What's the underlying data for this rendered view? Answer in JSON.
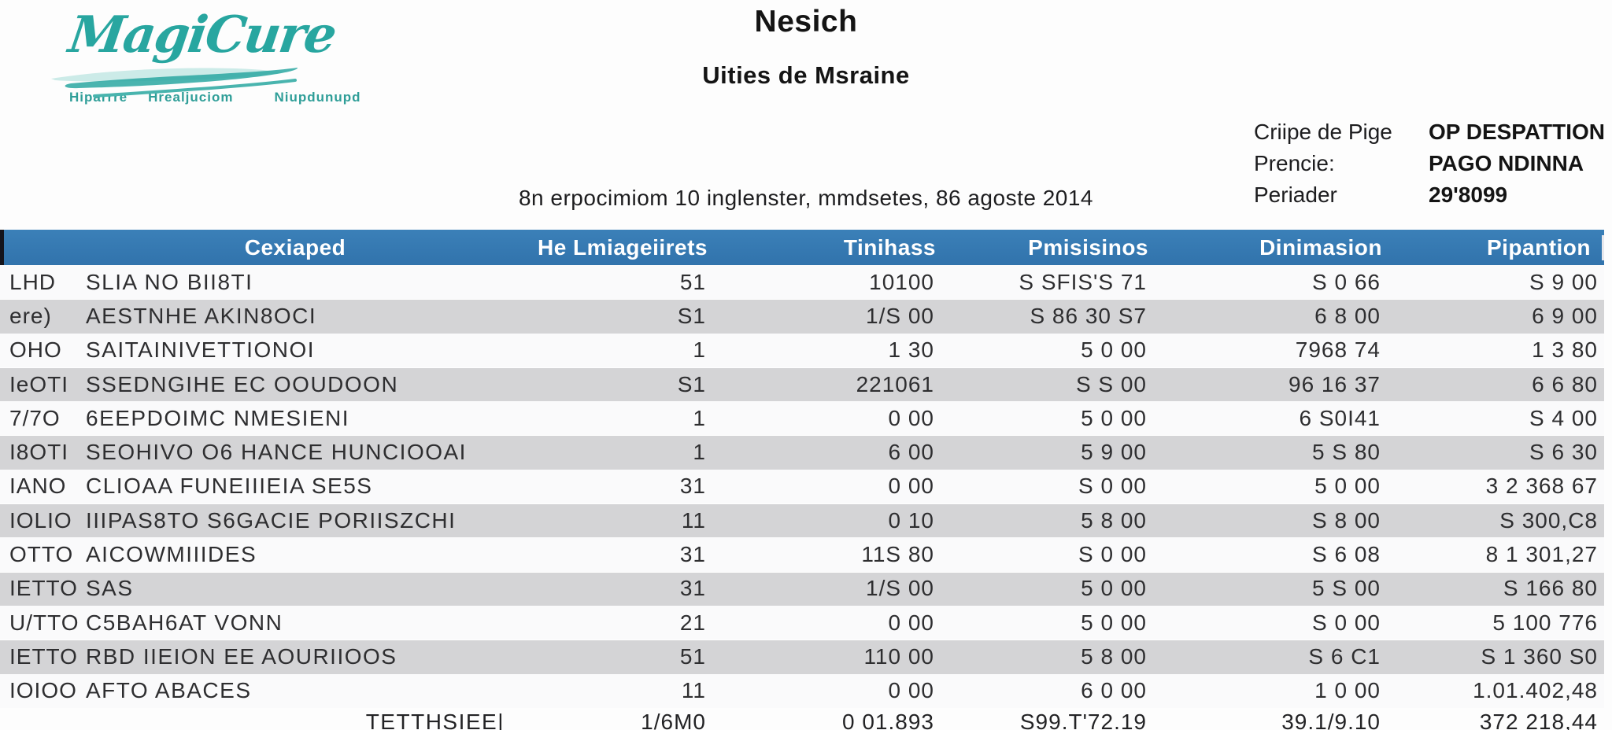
{
  "logo": {
    "brand": "MagiCure",
    "tagline": [
      "Hiparrre",
      "Hrealjuciom",
      "Niupdunupd"
    ]
  },
  "header": {
    "title": "Nesich",
    "subtitle": "Uities de Msraine",
    "info_line": "8n erpocimiom 10 inglenster, mmdsetes, 86 agoste 2014",
    "meta": {
      "labels": [
        "Criipe de Pige",
        "Prencie:",
        "Periader"
      ],
      "values": [
        "OP DESPATTION",
        "PAGO NDINNA",
        "29'8099"
      ]
    }
  },
  "table": {
    "columns": [
      "Cexiaped",
      "He Lmiageiirets",
      "Tinihass",
      "Pmisisinos",
      "Dinimasion",
      "Pipantion"
    ],
    "rows": [
      [
        "LHD",
        "SLIA NO BII8TI",
        "51",
        "10100",
        "S SFIS'S 71",
        "S 0 66",
        "S 9 00"
      ],
      [
        "ere)",
        "AESTNHE AKIN8OCI",
        "S1",
        "1/S 00",
        "S 86 30 S7",
        "6 8 00",
        "6 9 00"
      ],
      [
        "OHO",
        "SAITAINIVETTIONOI",
        "1",
        "1 30",
        "5 0 00",
        "7968 74",
        "1 3 80"
      ],
      [
        "IeOTI",
        "SSEDNGIHE EC OOUDOON",
        "S1",
        "221061",
        "S S 00",
        "96 16 37",
        "6 6 80"
      ],
      [
        "7/7O",
        "6EEPDOIMC NMESIENI",
        "1",
        "0 00",
        "5 0 00",
        "6 S0I41",
        "S 4 00"
      ],
      [
        "I8OTI",
        "SEOHIVO O6 HANCE HUNCIOOAI",
        "1",
        "6 00",
        "5 9 00",
        "5 S 80",
        "S 6 30"
      ],
      [
        "IANO",
        "CLIOAA FUNEIIIEIA SE5S",
        "31",
        "0 00",
        "S 0 00",
        "5 0 00",
        "3 2 368 67"
      ],
      [
        "IOLIO",
        "IIIPAS8TO S6GACIE PORIISZCHI",
        "11",
        "0 10",
        "5 8 00",
        "S 8 00",
        "S 300,C8"
      ],
      [
        "OTTO",
        "AICOWMIIIDES",
        "31",
        "11S 80",
        "S 0 00",
        "S 6 08",
        "8 1 301,27"
      ],
      [
        "IETTO",
        "SAS",
        "31",
        "1/S 00",
        "5 0 00",
        "5 S 00",
        "S 166 80"
      ],
      [
        "U/TTO",
        "C5BAH6AT VONN",
        "21",
        "0 00",
        "5 0 00",
        "S 0 00",
        "5 100 776"
      ],
      [
        "IETTO",
        "RBD IIEION EE AOURIIOOS",
        "51",
        "110 00",
        "5 8 00",
        "S 6 C1",
        "S 1 360 S0"
      ],
      [
        "IOIOO",
        "AFTO ABACES",
        "11",
        "0 00",
        "6 0 00",
        "1 0 00",
        "1.01.402,48"
      ]
    ],
    "totals": [
      "",
      "TETTHSIEE|",
      "1/6M0",
      "0 01.893",
      "S99.T'72.19",
      "39.1/9.10",
      "372 218,44"
    ]
  },
  "colors": {
    "header_blue": "#3377b1",
    "row_gray": "#d4d4d6",
    "row_light": "#fafafb",
    "brand_teal": "#28a6a0"
  }
}
